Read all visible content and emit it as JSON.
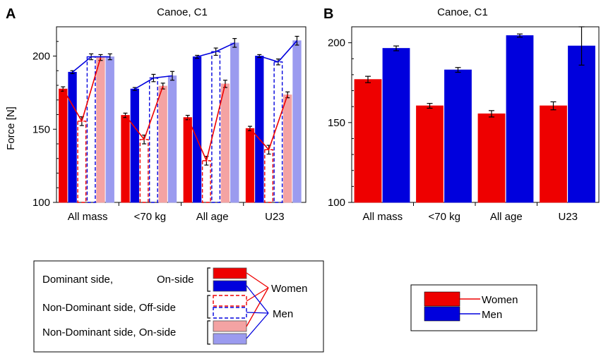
{
  "colors": {
    "women": "#ee0000",
    "men": "#0000dd",
    "women_light": "#f4a3a3",
    "men_light": "#9b9bef",
    "axis": "#000000"
  },
  "panel_a": {
    "letter": "A",
    "chart_data": {
      "type": "bar",
      "title": "Canoe, C1",
      "ylabel": "Force [N]",
      "xlabel": "",
      "ylim": [
        100,
        220
      ],
      "yticks": [
        100,
        150,
        200
      ],
      "categories": [
        "All mass",
        "<70 kg",
        "All age",
        "U23"
      ],
      "series": [
        {
          "name": "Women, Dominant side, On-side",
          "style": "solid",
          "color": "#ee0000",
          "values": [
            177.5,
            159.5,
            158,
            150.5
          ],
          "errors": [
            1.5,
            1.5,
            1.5,
            1.5
          ]
        },
        {
          "name": "Men, Dominant side, On-side",
          "style": "solid",
          "color": "#0000dd",
          "values": [
            189,
            177.5,
            199.5,
            200
          ],
          "errors": [
            1,
            1,
            1,
            1
          ]
        },
        {
          "name": "Women, Non-Dominant side, Off-side",
          "style": "dashed",
          "color": "#ee0000",
          "values": [
            155.5,
            143,
            128.5,
            136
          ],
          "errors": [
            3,
            3,
            3,
            3
          ]
        },
        {
          "name": "Men, Non-Dominant side, Off-side",
          "style": "dashed",
          "color": "#0000dd",
          "values": [
            199.5,
            185,
            203,
            196
          ],
          "errors": [
            2,
            2.5,
            2.5,
            2
          ]
        },
        {
          "name": "Women, Non-Dominant side, On-side",
          "style": "solid",
          "color": "#f4a3a3",
          "values": [
            199,
            179.5,
            181,
            173.5
          ],
          "errors": [
            2,
            2,
            2.5,
            2
          ]
        },
        {
          "name": "Men, Non-Dominant side, On-side",
          "style": "solid",
          "color": "#9b9bef",
          "values": [
            199.5,
            186.5,
            209,
            210.5
          ],
          "errors": [
            2,
            3,
            3,
            3
          ]
        }
      ]
    }
  },
  "panel_b": {
    "letter": "B",
    "chart_data": {
      "type": "bar",
      "title": "Canoe, C1",
      "ylabel": "",
      "xlabel": "",
      "ylim": [
        100,
        210
      ],
      "yticks": [
        100,
        150,
        200
      ],
      "categories": [
        "All mass",
        "<70 kg",
        "All age",
        "U23"
      ],
      "series": [
        {
          "name": "Women",
          "color": "#ee0000",
          "values": [
            177,
            160.5,
            155.5,
            160.5
          ],
          "errors": [
            2,
            1.5,
            2,
            2.5
          ]
        },
        {
          "name": "Men",
          "color": "#0000dd",
          "values": [
            196.5,
            183,
            204.5,
            198
          ],
          "errors": [
            1.5,
            1.5,
            1,
            12
          ]
        }
      ]
    }
  },
  "legend_a": {
    "rows": [
      {
        "label": "Dominant side,",
        "label2": "On-side"
      },
      {
        "label": "Non-Dominant side, Off-side",
        "label2": ""
      },
      {
        "label": "Non-Dominant side, On-side",
        "label2": ""
      }
    ],
    "women": "Women",
    "men": "Men"
  },
  "legend_b": {
    "women": "Women",
    "men": "Men"
  }
}
